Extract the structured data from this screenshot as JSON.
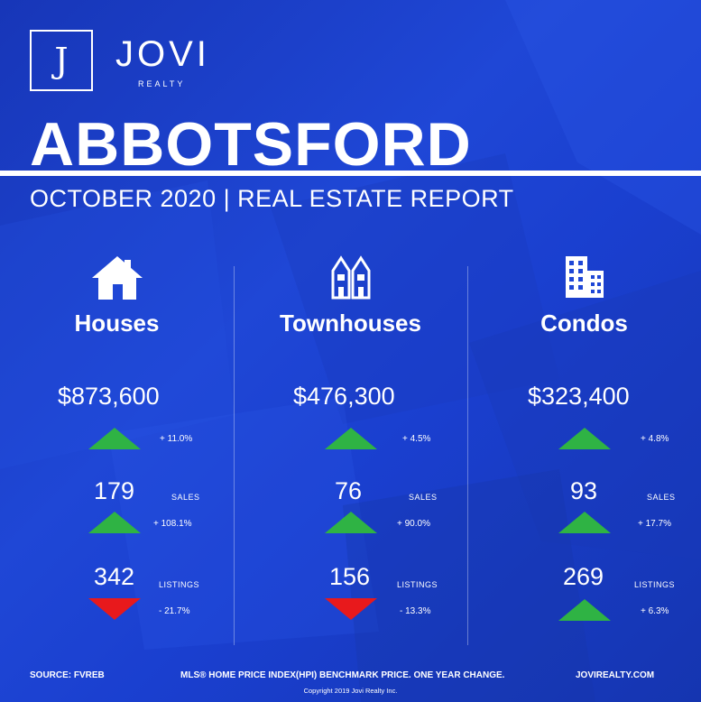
{
  "brand": {
    "monogram": "J",
    "name": "JOVI",
    "sub": "REALTY"
  },
  "header": {
    "city": "ABBOTSFORD",
    "subtitle": "OCTOBER 2020 | REAL ESTATE REPORT"
  },
  "colors": {
    "background": "#1f47d6",
    "up": "#2fb344",
    "down": "#e8191c",
    "text": "#ffffff"
  },
  "columns": [
    {
      "icon": "house-icon",
      "title": "Houses",
      "price": "$873,600",
      "price_change": "+ 11.0%",
      "price_dir": "up",
      "sales": "179",
      "sales_label": "SALES",
      "sales_change": "+ 108.1%",
      "sales_dir": "up",
      "listings": "342",
      "listings_label": "LISTINGS",
      "listings_change": "- 21.7%",
      "listings_dir": "down"
    },
    {
      "icon": "townhouse-icon",
      "title": "Townhouses",
      "price": "$476,300",
      "price_change": "+ 4.5%",
      "price_dir": "up",
      "sales": "76",
      "sales_label": "SALES",
      "sales_change": "+ 90.0%",
      "sales_dir": "up",
      "listings": "156",
      "listings_label": "LISTINGS",
      "listings_change": "- 13.3%",
      "listings_dir": "down"
    },
    {
      "icon": "condo-building-icon",
      "title": "Condos",
      "price": "$323,400",
      "price_change": "+ 4.8%",
      "price_dir": "up",
      "sales": "93",
      "sales_label": "SALES",
      "sales_change": "+ 17.7%",
      "sales_dir": "up",
      "listings": "269",
      "listings_label": "LISTINGS",
      "listings_change": "+ 6.3%",
      "listings_dir": "up"
    }
  ],
  "footer": {
    "source": "SOURCE:  FVREB",
    "note": "MLS® HOME PRICE INDEX(HPI) BENCHMARK PRICE. ONE YEAR CHANGE.",
    "website": "JOVIREALTY.COM",
    "copyright": "Copyright 2019 Jovi Realty Inc."
  }
}
